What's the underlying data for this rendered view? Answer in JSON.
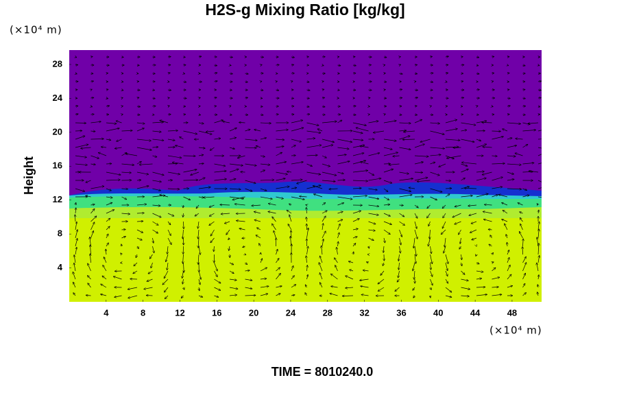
{
  "chart_data": {
    "type": "vector-field",
    "title": "H2S-g Mixing Ratio [kg/kg]",
    "y_label": "Height",
    "y_unit": "(×10⁴ m)",
    "x_unit": "(×10⁴ m)",
    "time_label": "TIME = 8010240.0",
    "xlim": [
      0,
      51.2
    ],
    "ylim": [
      0,
      29.7
    ],
    "xticks": [
      4,
      8,
      12,
      16,
      20,
      24,
      28,
      32,
      36,
      40,
      44,
      48
    ],
    "yticks": [
      4,
      8,
      12,
      16,
      20,
      24,
      28
    ]
  }
}
